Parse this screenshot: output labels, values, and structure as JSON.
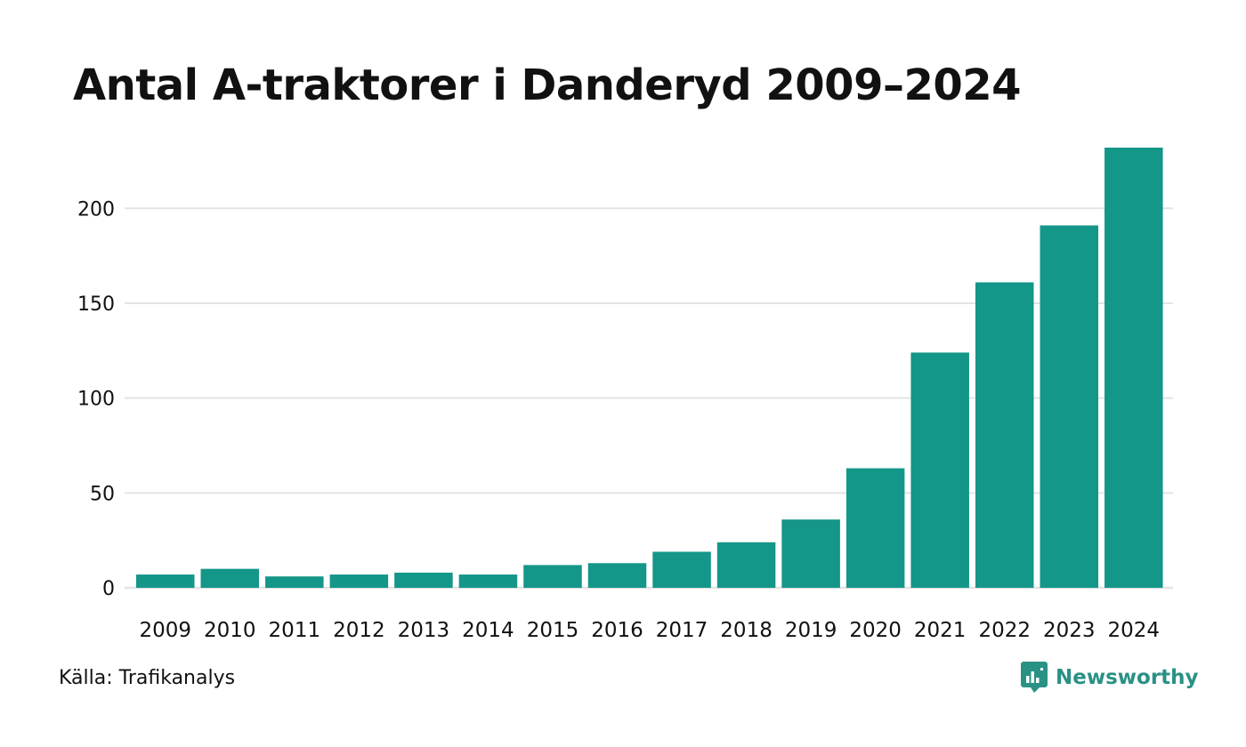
{
  "chart_data": {
    "type": "bar",
    "title": "Antal A-traktorer i Danderyd 2009–2024",
    "xlabel": "",
    "ylabel": "",
    "categories": [
      "2009",
      "2010",
      "2011",
      "2012",
      "2013",
      "2014",
      "2015",
      "2016",
      "2017",
      "2018",
      "2019",
      "2020",
      "2021",
      "2022",
      "2023",
      "2024"
    ],
    "values": [
      7,
      10,
      6,
      7,
      8,
      7,
      12,
      13,
      19,
      24,
      36,
      63,
      124,
      161,
      191,
      232
    ],
    "ylim": [
      0,
      232
    ],
    "yticks": [
      "0",
      "50",
      "100",
      "150",
      "200"
    ],
    "grid": true,
    "bar_color": "#149688",
    "grid_color": "#e3e3e3"
  },
  "footer": {
    "source": "Källa: Trafikanalys",
    "brand": "Newsworthy",
    "brand_color": "#2a9185",
    "brand_icon": "newsworthy-logo-icon"
  }
}
